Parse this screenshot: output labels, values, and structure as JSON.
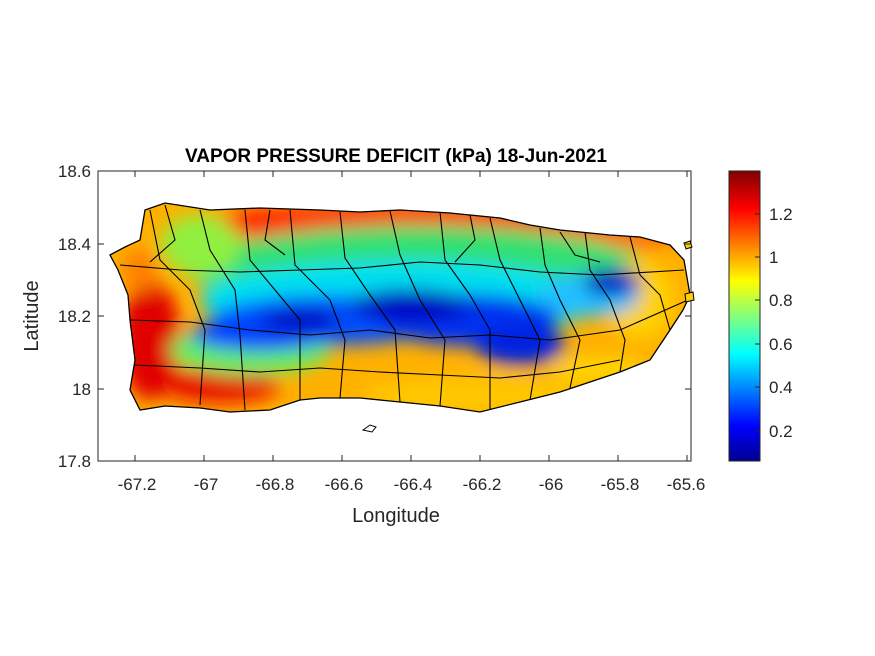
{
  "map": {
    "title": "VAPOR PRESSURE DEFICIT (kPa) 18-Jun-2021",
    "xlabel": "Longitude",
    "ylabel": "Latitude",
    "x_ticks": [
      "-67.2",
      "-67",
      "-66.8",
      "-66.6",
      "-66.4",
      "-66.2",
      "-66",
      "-65.8",
      "-65.6"
    ],
    "y_ticks": [
      "18.6",
      "18.4",
      "18.2",
      "18"
    ],
    "y_tick_bottom": "17.8",
    "colorbar_ticks": [
      "1.2",
      "1",
      "0.8",
      "0.6",
      "0.4",
      "0.2"
    ],
    "colormap": "jet",
    "colors": {
      "dark_blue": "#00008f",
      "blue": "#0000ff",
      "cyan": "#00ffff",
      "yellow": "#ffff00",
      "red": "#ff0000",
      "dark_red": "#800000"
    }
  },
  "chart_data": {
    "type": "heatmap",
    "title": "VAPOR PRESSURE DEFICIT (kPa) 18-Jun-2021",
    "xlabel": "Longitude",
    "ylabel": "Latitude",
    "xlim": [
      -67.3,
      -65.58
    ],
    "ylim": [
      17.8,
      18.6
    ],
    "clim": [
      0.05,
      1.4
    ],
    "colorbar_ticks": [
      0.2,
      0.4,
      0.6,
      0.8,
      1.0,
      1.2
    ],
    "regions": [
      {
        "name": "",
        "lon": -66.45,
        "lat": 18.17,
        "value": 0.15
      },
      {
        "name": "",
        "lon": -65.8,
        "lat": 18.28,
        "value": 0.2
      },
      {
        "name": "",
        "lon": -67.2,
        "lat": 18.1,
        "value": 1.35
      },
      {
        "name": "",
        "lon": -66.6,
        "lat": 18.47,
        "value": 1.25
      },
      {
        "name": "",
        "lon": -66.3,
        "lat": 17.95,
        "value": 0.9
      }
    ]
  }
}
